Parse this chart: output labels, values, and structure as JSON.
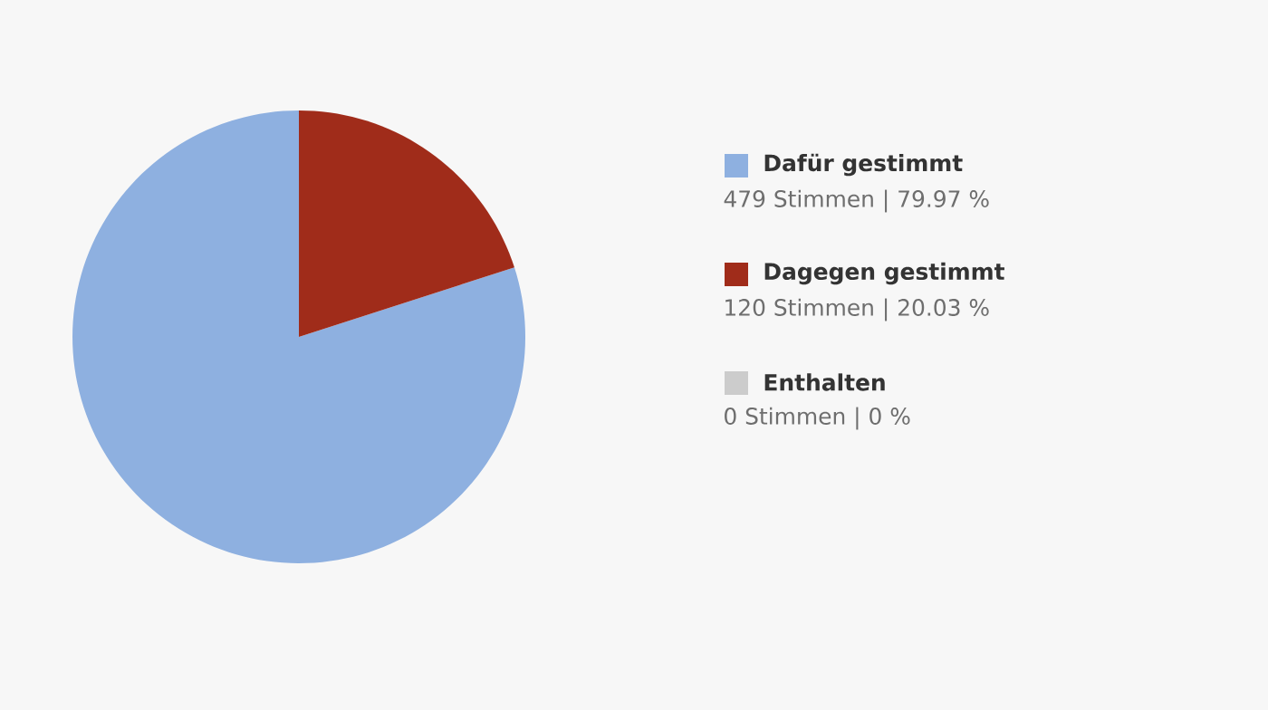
{
  "chart_data": {
    "type": "pie",
    "categories": [
      "Dafür gestimmt",
      "Dagegen gestimmt",
      "Enthalten"
    ],
    "values": [
      479,
      120,
      0
    ],
    "colors": [
      "#8eb0e0",
      "#a02c1a",
      "#cccccc"
    ],
    "value_labels": [
      "479 Stimmen | 79.97 %",
      "120 Stimmen | 20.03 %",
      "0 Stimmen | 0 %"
    ],
    "legend": "right"
  }
}
